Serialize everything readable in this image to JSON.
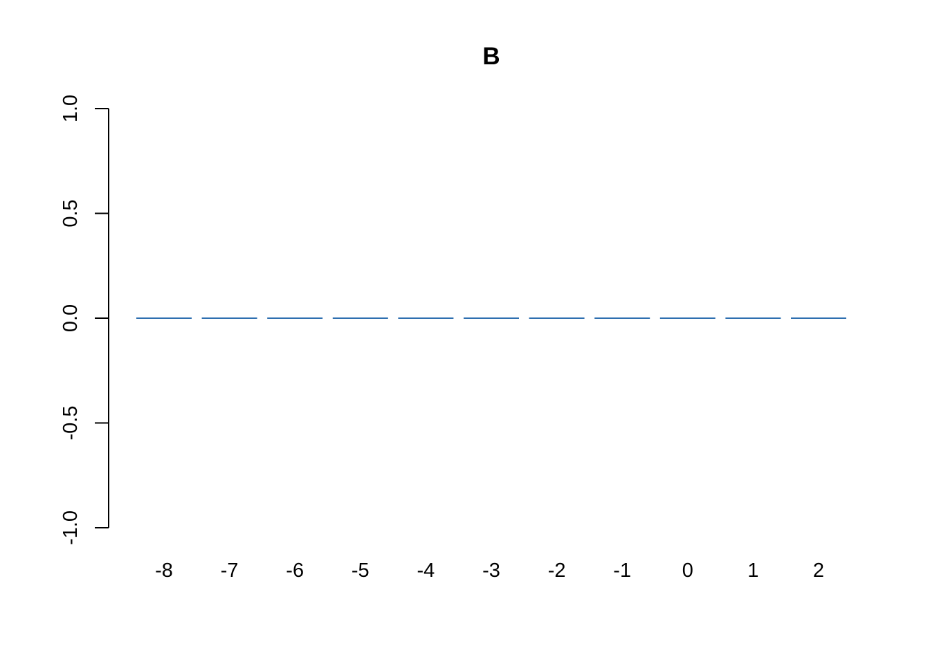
{
  "chart_data": {
    "type": "bar",
    "title": "B",
    "xlabel": "",
    "ylabel": "",
    "categories": [
      "-8",
      "-7",
      "-6",
      "-5",
      "-4",
      "-3",
      "-2",
      "-1",
      "0",
      "1",
      "2"
    ],
    "values": [
      0,
      0,
      0,
      0,
      0,
      0,
      0,
      0,
      0,
      0,
      0
    ],
    "ylim": [
      -1.0,
      1.0
    ],
    "yticks": [
      "-1.0",
      "-0.5",
      "0.0",
      "0.5",
      "1.0"
    ],
    "grid": false,
    "series_color": "#2e6fb0"
  }
}
